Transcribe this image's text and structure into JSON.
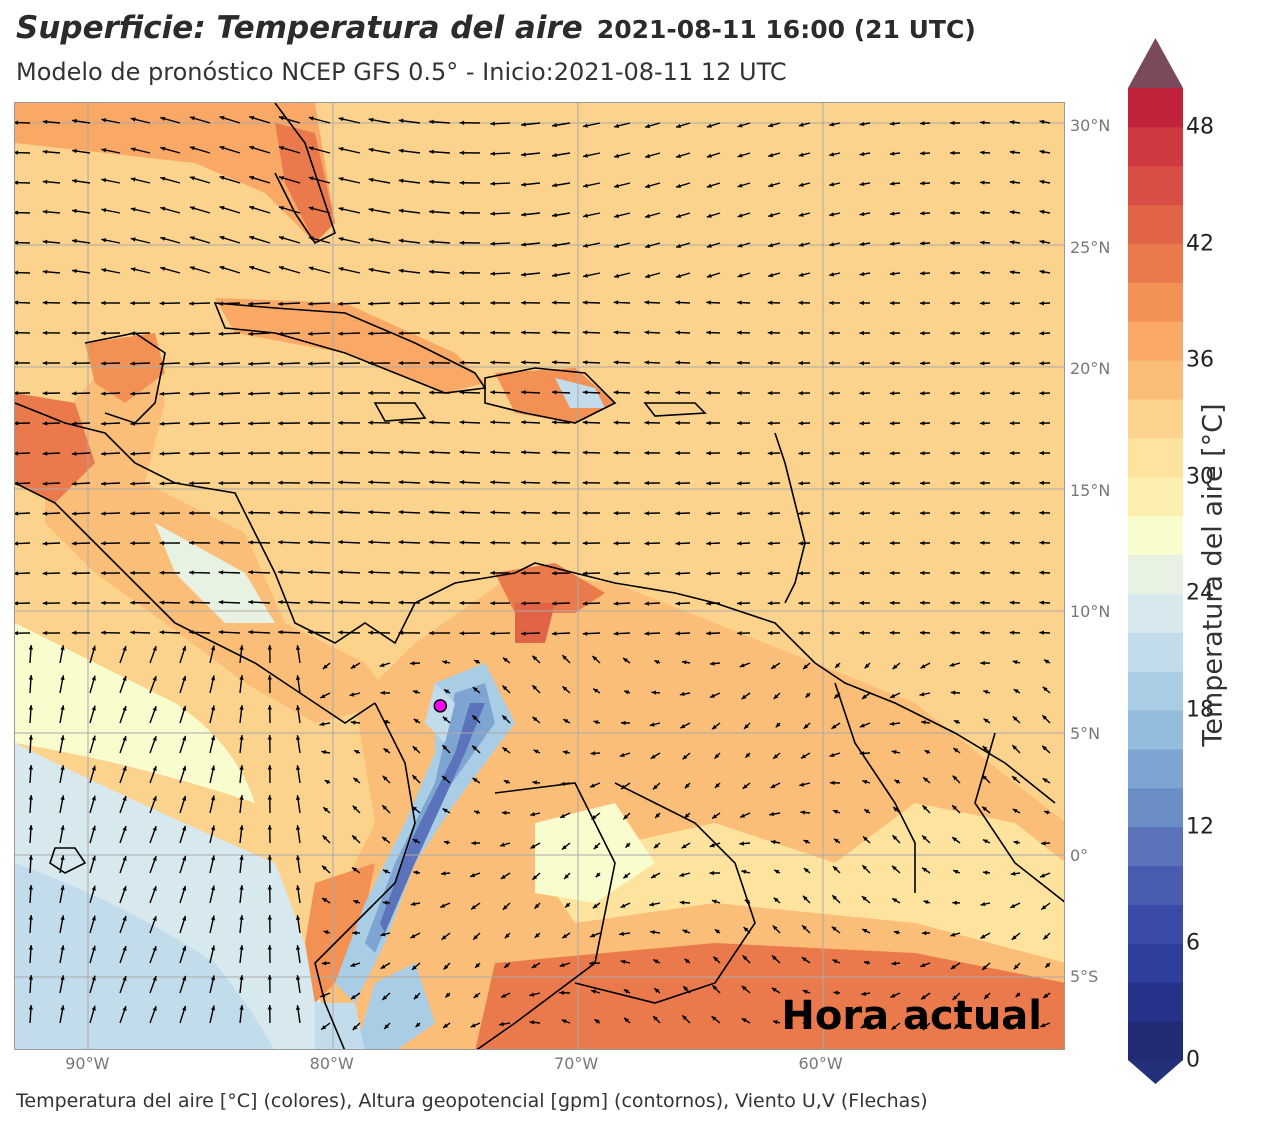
{
  "header": {
    "title": "Superficie: Temperatura del aire",
    "valid_time": "2021-08-11 16:00 (21 UTC)",
    "subtitle": "Modelo de pronóstico NCEP GFS 0.5° - Inicio:2021-08-11 12 UTC"
  },
  "map": {
    "badge": "Hora actual",
    "lat_labels": [
      "30°N",
      "25°N",
      "20°N",
      "15°N",
      "10°N",
      "5°N",
      "0°",
      "5°S"
    ],
    "lon_labels": [
      "90°W",
      "80°W",
      "70°W",
      "60°W"
    ],
    "lat_values": [
      30,
      25,
      20,
      15,
      10,
      5,
      0,
      -5
    ],
    "lon_values": [
      -90,
      -80,
      -70,
      -60
    ],
    "lon_range": [
      -93,
      -50
    ],
    "lat_range": [
      -8,
      31
    ],
    "marker": {
      "lon": -75.6,
      "lat": 6.2,
      "color": "#ff00ff"
    }
  },
  "colorbar": {
    "label": "Temperatura del aire [°C]",
    "ticks": [
      "0",
      "6",
      "12",
      "18",
      "24",
      "30",
      "36",
      "42",
      "48"
    ],
    "min": 0,
    "max": 50,
    "step": 2,
    "over_color": "#7a4a5c",
    "under_color": "#24317a",
    "colors": [
      "#222b73",
      "#27328a",
      "#2f3e9b",
      "#3a4aa6",
      "#4a5cb0",
      "#5a73bb",
      "#6a8dc6",
      "#7ea4d1",
      "#94bcdd",
      "#aacde6",
      "#c3dcec",
      "#d7e8ee",
      "#e7f2e2",
      "#f9fccc",
      "#fdf0ae",
      "#fde39e",
      "#fcd38d",
      "#fbbe79",
      "#f9a866",
      "#f39155",
      "#ea7a4c",
      "#e26447",
      "#d94e44",
      "#cf3a40",
      "#c0233b"
    ]
  },
  "footer": "Temperatura del aire [°C] (colores), Altura geopotencial [gpm] (contornos), Viento U,V (Flechas)"
}
